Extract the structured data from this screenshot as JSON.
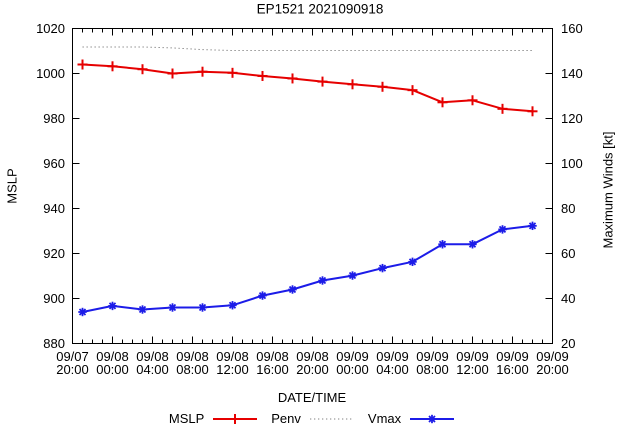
{
  "chart_data": {
    "type": "line",
    "title": "EP1521 2021090918",
    "xlabel": "DATE/TIME",
    "xlim": [
      0,
      48
    ],
    "x_major_tick_hours": [
      0,
      4,
      8,
      12,
      16,
      20,
      24,
      28,
      32,
      36,
      40,
      44,
      48
    ],
    "x_minor_tick_step_hours": 1,
    "x_tick_labels": [
      {
        "date": "09/07",
        "time": "20:00"
      },
      {
        "date": "09/08",
        "time": "00:00"
      },
      {
        "date": "09/08",
        "time": "04:00"
      },
      {
        "date": "09/08",
        "time": "08:00"
      },
      {
        "date": "09/08",
        "time": "12:00"
      },
      {
        "date": "09/08",
        "time": "16:00"
      },
      {
        "date": "09/08",
        "time": "20:00"
      },
      {
        "date": "09/09",
        "time": "00:00"
      },
      {
        "date": "09/09",
        "time": "04:00"
      },
      {
        "date": "09/09",
        "time": "08:00"
      },
      {
        "date": "09/09",
        "time": "12:00"
      },
      {
        "date": "09/09",
        "time": "16:00"
      },
      {
        "date": "09/09",
        "time": "20:00"
      }
    ],
    "y_left": {
      "label": "MSLP",
      "lim": [
        880,
        1020
      ],
      "ticks": [
        880,
        900,
        920,
        940,
        960,
        980,
        1000,
        1020
      ]
    },
    "y_right": {
      "label": "Maximum Winds [kt]",
      "lim": [
        20,
        160
      ],
      "ticks": [
        20,
        40,
        60,
        80,
        100,
        120,
        140,
        160
      ]
    },
    "x_hours": [
      1,
      4,
      7,
      10,
      13,
      16,
      19,
      22,
      25,
      28,
      31,
      34,
      37,
      40,
      43,
      46
    ],
    "x_times": [
      "09/07 21:00",
      "09/08 00:00",
      "09/08 03:00",
      "09/08 06:00",
      "09/08 09:00",
      "09/08 12:00",
      "09/08 15:00",
      "09/08 18:00",
      "09/08 21:00",
      "09/09 00:00",
      "09/09 03:00",
      "09/09 06:00",
      "09/09 09:00",
      "09/09 12:00",
      "09/09 15:00",
      "09/09 18:00"
    ],
    "series": [
      {
        "name": "MSLP",
        "axis": "left",
        "color": "#e60000",
        "line": "solid",
        "marker": "plus",
        "values": [
          1004.0,
          1003.2,
          1001.9,
          1000.0,
          1000.8,
          1000.3,
          998.9,
          997.8,
          996.4,
          995.2,
          994.1,
          992.6,
          987.2,
          988.1,
          984.3,
          983.2
        ]
      },
      {
        "name": "Penv",
        "axis": "left",
        "color": "#808080",
        "line": "dotted",
        "marker": "none",
        "values": [
          1011.8,
          1011.8,
          1011.8,
          1011.4,
          1010.6,
          1010.2,
          1010.2,
          1010.2,
          1010.2,
          1010.2,
          1010.2,
          1010.2,
          1010.2,
          1010.2,
          1010.2,
          1010.2
        ]
      },
      {
        "name": "Vmax",
        "axis": "right",
        "color": "#1c1ce8",
        "line": "solid",
        "marker": "asterisk",
        "values": [
          34.0,
          36.7,
          35.1,
          36.0,
          36.0,
          37.0,
          41.3,
          44.0,
          48.0,
          50.2,
          53.5,
          56.3,
          64.1,
          64.1,
          70.7,
          72.3
        ]
      }
    ],
    "legend_position": "bottom-center",
    "grid": false
  }
}
